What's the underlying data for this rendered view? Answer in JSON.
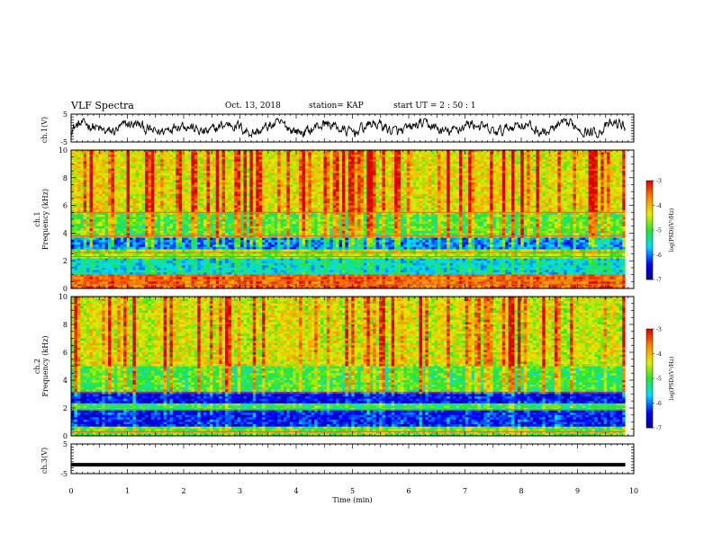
{
  "header": {
    "title": "VLF Spectra",
    "date": "Oct. 13, 2018",
    "station": "station= KAP",
    "start": "start  UT =  2 : 50 : 1"
  },
  "chart_data": [
    {
      "type": "line",
      "panel": "ch1-waveform",
      "ylabel": "ch.1(V)",
      "ylim": [
        -5,
        5
      ],
      "yticks": [
        "5",
        "-5"
      ],
      "xlim": [
        0,
        10
      ],
      "series": [
        {
          "color": "#000000",
          "description": "noisy waveform between about -3 and 3 V",
          "time_end_min": 9.85
        }
      ]
    },
    {
      "type": "heatmap",
      "panel": "ch1-spectrogram",
      "ylabel": "ch.1\nFrequency (kHz)",
      "ylim": [
        0,
        10
      ],
      "yticks": [
        "0",
        "2",
        "4",
        "6",
        "8",
        "10"
      ],
      "xlim": [
        0,
        10
      ],
      "time_end_min": 9.85,
      "colorbar": {
        "label": "log(PSD)(V²/Hz)",
        "range": [
          -7,
          -3
        ],
        "ticks": [
          "-3",
          "-4",
          "-5",
          "-6",
          "-7"
        ]
      },
      "bands": [
        {
          "fmin": 0.0,
          "fmax": 1.0,
          "level": -3.6
        },
        {
          "fmin": 1.0,
          "fmax": 2.2,
          "level": -5.6
        },
        {
          "fmin": 2.2,
          "fmax": 2.8,
          "level": -4.7
        },
        {
          "fmin": 2.8,
          "fmax": 3.6,
          "level": -6.0
        },
        {
          "fmin": 3.6,
          "fmax": 5.5,
          "level": -4.9
        },
        {
          "fmin": 5.5,
          "fmax": 10.0,
          "level": -4.3
        }
      ],
      "lines_khz": [
        0.3,
        0.6,
        0.9,
        2.3,
        2.6,
        3.8,
        5.5
      ]
    },
    {
      "type": "heatmap",
      "panel": "ch2-spectrogram",
      "ylabel": "ch.2\nFrequency (kHz)",
      "ylim": [
        0,
        10
      ],
      "yticks": [
        "0",
        "2",
        "4",
        "6",
        "8",
        "10"
      ],
      "xlim": [
        0,
        10
      ],
      "time_end_min": 9.85,
      "colorbar": {
        "label": "log(PSD)(V²/Hz)",
        "range": [
          -7,
          -3
        ],
        "ticks": [
          "-3",
          "-4",
          "-5",
          "-6",
          "-7"
        ]
      },
      "bands": [
        {
          "fmin": 0.0,
          "fmax": 0.6,
          "level": -4.8
        },
        {
          "fmin": 0.6,
          "fmax": 1.9,
          "level": -6.3
        },
        {
          "fmin": 1.9,
          "fmax": 2.3,
          "level": -5.0
        },
        {
          "fmin": 2.3,
          "fmax": 3.1,
          "level": -6.4
        },
        {
          "fmin": 3.1,
          "fmax": 5.0,
          "level": -4.9
        },
        {
          "fmin": 5.0,
          "fmax": 10.0,
          "level": -4.3
        }
      ],
      "lines_khz": [
        0.3,
        1.9,
        3.1
      ]
    },
    {
      "type": "line",
      "panel": "ch3-waveform",
      "ylabel": "ch.3(V)",
      "ylim": [
        -5,
        5
      ],
      "yticks": [
        "5",
        "-5"
      ],
      "xlabel": "Time (min)",
      "xlim": [
        0,
        10
      ],
      "xticks": [
        "0",
        "1",
        "2",
        "3",
        "4",
        "5",
        "6",
        "7",
        "8",
        "9",
        "10"
      ],
      "series": [
        {
          "color": "#000000",
          "description": "flat thick line at about -2 V",
          "value": -2,
          "time_end_min": 9.85
        }
      ]
    }
  ]
}
